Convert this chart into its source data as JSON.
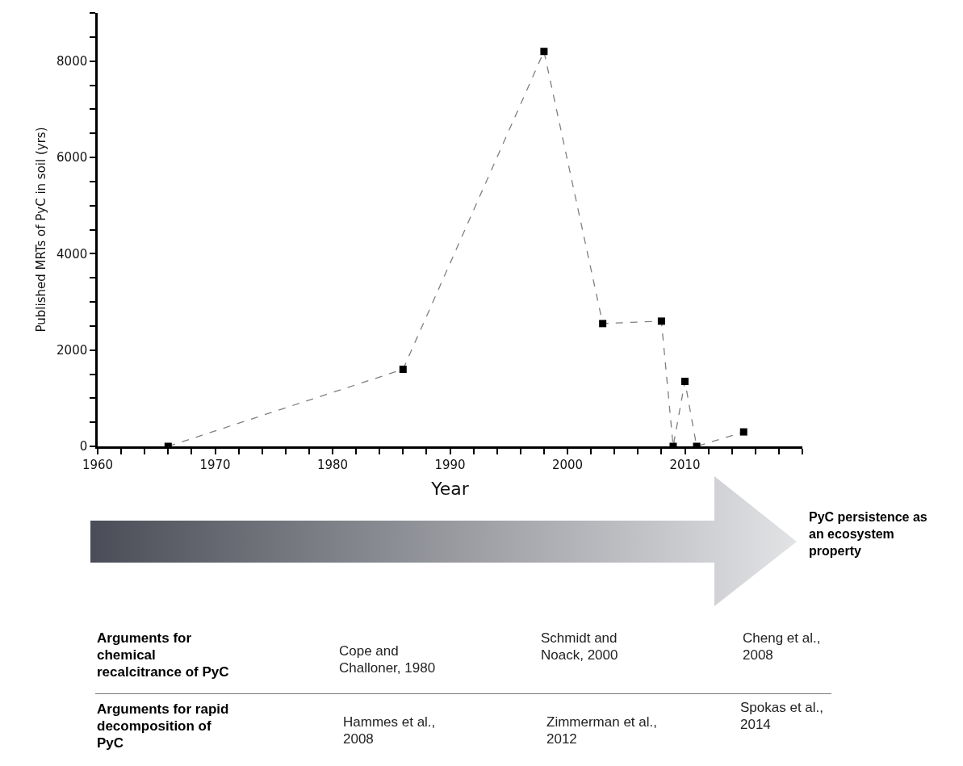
{
  "chart_data": {
    "type": "line",
    "xlabel": "Year",
    "ylabel": "Published MRTs of PyC in soil (yrs)",
    "x": [
      1966,
      1986,
      1998,
      2003,
      2008,
      2009,
      2010,
      2011,
      2015
    ],
    "series": [
      {
        "color": "#000000",
        "values": [
          0,
          1600,
          8200,
          2550,
          2600,
          0,
          1350,
          0,
          300
        ]
      }
    ],
    "xlim": [
      1960,
      2020
    ],
    "xticks": [
      1960,
      {
        "value": 1962,
        "label": null
      },
      {
        "value": 1964,
        "label": null
      },
      {
        "value": 1966,
        "label": null
      },
      {
        "value": 1968,
        "label": null
      },
      1970,
      {
        "value": 1972,
        "label": null
      },
      {
        "value": 1974,
        "label": null
      },
      {
        "value": 1976,
        "label": null
      },
      {
        "value": 1978,
        "label": null
      },
      1980,
      {
        "value": 1982,
        "label": null
      },
      {
        "value": 1984,
        "label": null
      },
      {
        "value": 1986,
        "label": null
      },
      {
        "value": 1988,
        "label": null
      },
      1990,
      {
        "value": 1992,
        "label": null
      },
      {
        "value": 1994,
        "label": null
      },
      {
        "value": 1996,
        "label": null
      },
      {
        "value": 1998,
        "label": null
      },
      2000,
      {
        "value": 2002,
        "label": null
      },
      {
        "value": 2004,
        "label": null
      },
      {
        "value": 2006,
        "label": null
      },
      {
        "value": 2008,
        "label": null
      },
      2010,
      {
        "value": 2012,
        "label": null
      },
      {
        "value": 2014,
        "label": null
      },
      {
        "value": 2016,
        "label": null
      },
      {
        "value": 2018,
        "label": null
      },
      {
        "value": 2020,
        "label": null
      }
    ],
    "ylim": [
      0,
      9000
    ],
    "yticks": [
      0,
      {
        "value": 500,
        "label": null
      },
      {
        "value": 1000,
        "label": null
      },
      {
        "value": 1500,
        "label": null
      },
      2000,
      {
        "value": 2500,
        "label": null
      },
      {
        "value": 3000,
        "label": null
      },
      {
        "value": 3500,
        "label": null
      },
      4000,
      {
        "value": 4500,
        "label": null
      },
      {
        "value": 5000,
        "label": null
      },
      {
        "value": 5500,
        "label": null
      },
      6000,
      {
        "value": 6500,
        "label": null
      },
      {
        "value": 7000,
        "label": null
      },
      {
        "value": 7500,
        "label": null
      },
      8000,
      {
        "value": 8500,
        "label": null
      },
      {
        "value": 9000,
        "label": null
      }
    ],
    "grid": false,
    "legend": false,
    "marker": "square",
    "line_style": "dashed",
    "annotations": [
      "PyC persistence as an ecosystem property",
      "Arguments for chemical recalcitrance of PyC",
      "Cope and Challoner, 1980",
      "Schmidt and Noack, 2000",
      "Cheng et al., 2008",
      "Arguments for rapid decomposition of PyC",
      "Hammes et al., 2008",
      "Zimmerman et al., 2012",
      "Spokas et al., 2014"
    ]
  }
}
